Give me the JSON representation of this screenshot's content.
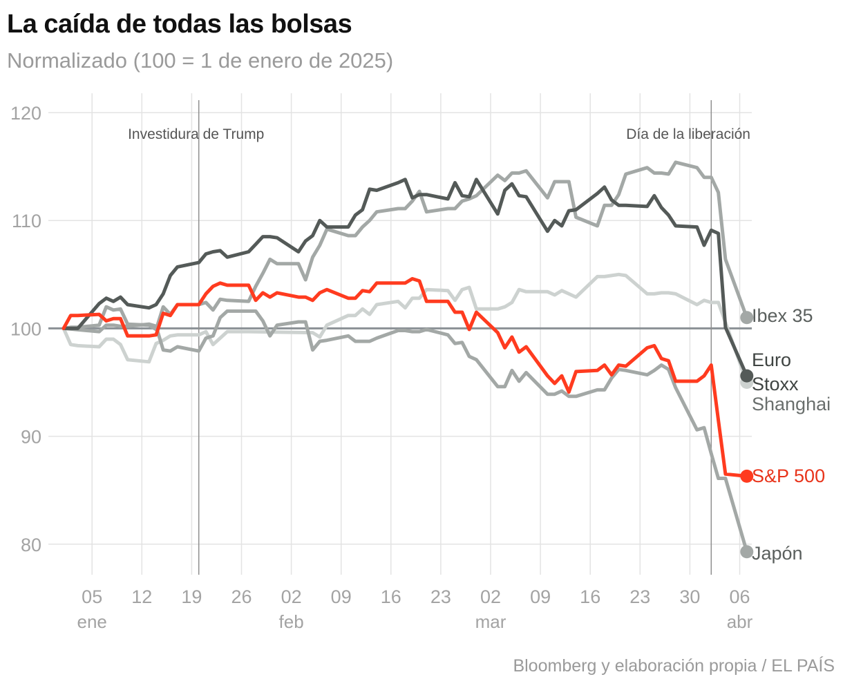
{
  "title": "La caída de todas las bolsas",
  "subtitle": "Normalizado (100 = 1 de enero de 2025)",
  "source": "Bloomberg y elaboración propia / EL PAÍS",
  "chart_data": {
    "type": "line",
    "x_start": "2025-01-01",
    "ylim": [
      76,
      121
    ],
    "yticks": [
      80,
      90,
      100,
      110,
      120
    ],
    "baseline": 100,
    "grid": true,
    "xticks": [
      {
        "date": "2025-01-05",
        "label": "05"
      },
      {
        "date": "2025-01-12",
        "label": "12"
      },
      {
        "date": "2025-01-19",
        "label": "19"
      },
      {
        "date": "2025-01-26",
        "label": "26"
      },
      {
        "date": "2025-02-02",
        "label": "02"
      },
      {
        "date": "2025-02-09",
        "label": "09"
      },
      {
        "date": "2025-02-16",
        "label": "16"
      },
      {
        "date": "2025-02-23",
        "label": "23"
      },
      {
        "date": "2025-03-02",
        "label": "02"
      },
      {
        "date": "2025-03-09",
        "label": "09"
      },
      {
        "date": "2025-03-16",
        "label": "16"
      },
      {
        "date": "2025-03-23",
        "label": "23"
      },
      {
        "date": "2025-03-30",
        "label": "30"
      },
      {
        "date": "2025-04-06",
        "label": "06"
      }
    ],
    "month_labels": [
      {
        "date": "2025-01-05",
        "label": "ene"
      },
      {
        "date": "2025-02-02",
        "label": "feb"
      },
      {
        "date": "2025-03-02",
        "label": "mar"
      },
      {
        "date": "2025-04-06",
        "label": "abr"
      }
    ],
    "events": [
      {
        "date": "2025-01-20",
        "label": "Investidura de Trump"
      },
      {
        "date": "2025-04-02",
        "label": "Día de la liberación"
      }
    ],
    "series": [
      {
        "name": "Shanghai",
        "color": "#cdd2d0",
        "x": [
          "2025-01-01",
          "2025-01-02",
          "2025-01-03",
          "2025-01-06",
          "2025-01-07",
          "2025-01-08",
          "2025-01-09",
          "2025-01-10",
          "2025-01-13",
          "2025-01-14",
          "2025-01-15",
          "2025-01-16",
          "2025-01-17",
          "2025-01-20",
          "2025-01-21",
          "2025-01-22",
          "2025-01-23",
          "2025-01-24",
          "2025-01-27",
          "2025-02-05",
          "2025-02-06",
          "2025-02-07",
          "2025-02-10",
          "2025-02-11",
          "2025-02-12",
          "2025-02-13",
          "2025-02-14",
          "2025-02-17",
          "2025-02-18",
          "2025-02-19",
          "2025-02-20",
          "2025-02-21",
          "2025-02-24",
          "2025-02-25",
          "2025-02-26",
          "2025-02-27",
          "2025-02-28",
          "2025-03-03",
          "2025-03-04",
          "2025-03-05",
          "2025-03-06",
          "2025-03-07",
          "2025-03-10",
          "2025-03-11",
          "2025-03-12",
          "2025-03-13",
          "2025-03-14",
          "2025-03-17",
          "2025-03-18",
          "2025-03-19",
          "2025-03-20",
          "2025-03-21",
          "2025-03-24",
          "2025-03-25",
          "2025-03-26",
          "2025-03-27",
          "2025-03-28",
          "2025-03-31",
          "2025-04-01",
          "2025-04-02",
          "2025-04-03",
          "2025-04-07"
        ],
        "values": [
          100,
          98.5,
          98.4,
          98.3,
          99.0,
          99.0,
          98.5,
          97.1,
          96.9,
          98.6,
          98.9,
          99.3,
          99.4,
          99.4,
          99.7,
          98.5,
          99.1,
          99.7,
          99.7,
          99.6,
          99.2,
          100.3,
          101.2,
          101.2,
          101.8,
          101.3,
          102.2,
          102.5,
          101.9,
          102.8,
          102.8,
          103.6,
          103.5,
          102.6,
          103.6,
          103.8,
          101.8,
          101.8,
          102.0,
          102.4,
          103.6,
          103.4,
          103.4,
          103.1,
          103.5,
          103.2,
          102.9,
          104.8,
          104.8,
          104.9,
          105.0,
          104.9,
          103.2,
          103.2,
          103.3,
          103.3,
          103.2,
          102.2,
          102.6,
          102.4,
          102.4,
          95.0
        ]
      },
      {
        "name": "Ibex 35",
        "color": "#a3a8a6",
        "x": [
          "2025-01-01",
          "2025-01-02",
          "2025-01-03",
          "2025-01-06",
          "2025-01-07",
          "2025-01-08",
          "2025-01-09",
          "2025-01-10",
          "2025-01-13",
          "2025-01-14",
          "2025-01-15",
          "2025-01-16",
          "2025-01-17",
          "2025-01-20",
          "2025-01-21",
          "2025-01-22",
          "2025-01-23",
          "2025-01-24",
          "2025-01-27",
          "2025-01-28",
          "2025-01-29",
          "2025-01-30",
          "2025-01-31",
          "2025-02-03",
          "2025-02-04",
          "2025-02-05",
          "2025-02-06",
          "2025-02-07",
          "2025-02-10",
          "2025-02-11",
          "2025-02-12",
          "2025-02-13",
          "2025-02-14",
          "2025-02-17",
          "2025-02-18",
          "2025-02-19",
          "2025-02-20",
          "2025-02-21",
          "2025-02-24",
          "2025-02-25",
          "2025-02-26",
          "2025-02-27",
          "2025-02-28",
          "2025-03-03",
          "2025-03-04",
          "2025-03-05",
          "2025-03-06",
          "2025-03-07",
          "2025-03-10",
          "2025-03-11",
          "2025-03-12",
          "2025-03-13",
          "2025-03-14",
          "2025-03-17",
          "2025-03-18",
          "2025-03-19",
          "2025-03-20",
          "2025-03-21",
          "2025-03-24",
          "2025-03-25",
          "2025-03-26",
          "2025-03-27",
          "2025-03-28",
          "2025-03-31",
          "2025-04-01",
          "2025-04-02",
          "2025-04-03",
          "2025-04-04",
          "2025-04-07"
        ],
        "values": [
          100,
          100.1,
          100.1,
          100.3,
          102.0,
          101.7,
          101.8,
          100.4,
          100.3,
          99.9,
          102.0,
          101.3,
          102.2,
          102.2,
          102.4,
          101.7,
          102.7,
          102.6,
          102.5,
          103.9,
          105.1,
          106.4,
          106.0,
          106.0,
          104.5,
          106.6,
          107.7,
          109.2,
          108.6,
          108.6,
          109.4,
          110.0,
          110.8,
          111.1,
          111.1,
          111.8,
          112.7,
          110.8,
          111.1,
          111.1,
          111.8,
          112.0,
          112.3,
          114.2,
          113.7,
          114.4,
          114.4,
          114.6,
          112.1,
          113.6,
          113.6,
          113.6,
          110.3,
          109.5,
          111.4,
          111.4,
          112.4,
          114.3,
          114.9,
          114.4,
          114.4,
          114.3,
          115.4,
          114.9,
          114.0,
          114.0,
          112.6,
          106.4,
          101.0
        ]
      },
      {
        "name": "Japón",
        "color": "#a3a8a6",
        "x": [
          "2025-01-01",
          "2025-01-06",
          "2025-01-07",
          "2025-01-08",
          "2025-01-09",
          "2025-01-10",
          "2025-01-13",
          "2025-01-14",
          "2025-01-15",
          "2025-01-16",
          "2025-01-17",
          "2025-01-20",
          "2025-01-21",
          "2025-01-22",
          "2025-01-23",
          "2025-01-24",
          "2025-01-27",
          "2025-01-28",
          "2025-01-29",
          "2025-01-30",
          "2025-01-31",
          "2025-02-03",
          "2025-02-04",
          "2025-02-05",
          "2025-02-06",
          "2025-02-07",
          "2025-02-10",
          "2025-02-11",
          "2025-02-12",
          "2025-02-13",
          "2025-02-14",
          "2025-02-17",
          "2025-02-18",
          "2025-02-19",
          "2025-02-20",
          "2025-02-21",
          "2025-02-24",
          "2025-02-25",
          "2025-02-26",
          "2025-02-27",
          "2025-02-28",
          "2025-03-03",
          "2025-03-04",
          "2025-03-05",
          "2025-03-06",
          "2025-03-07",
          "2025-03-10",
          "2025-03-11",
          "2025-03-12",
          "2025-03-13",
          "2025-03-14",
          "2025-03-17",
          "2025-03-18",
          "2025-03-19",
          "2025-03-20",
          "2025-03-21",
          "2025-03-24",
          "2025-03-25",
          "2025-03-26",
          "2025-03-27",
          "2025-03-28",
          "2025-03-31",
          "2025-04-01",
          "2025-04-02",
          "2025-04-03",
          "2025-04-04",
          "2025-04-07"
        ],
        "values": [
          100,
          99.7,
          100.3,
          100.3,
          100.2,
          100.2,
          100.4,
          100.2,
          98.0,
          97.9,
          98.3,
          97.9,
          99.1,
          99.3,
          101.0,
          101.6,
          101.6,
          101.6,
          100.7,
          99.3,
          100.3,
          100.6,
          100.6,
          98.0,
          98.8,
          98.9,
          99.3,
          98.8,
          98.8,
          98.8,
          99.1,
          99.8,
          99.8,
          99.7,
          99.7,
          99.9,
          99.4,
          98.6,
          98.7,
          97.4,
          97.1,
          94.6,
          94.6,
          96.1,
          95.1,
          95.9,
          93.9,
          93.9,
          94.2,
          93.7,
          93.7,
          94.3,
          94.3,
          95.4,
          96.2,
          96.1,
          95.7,
          96.1,
          96.6,
          96.2,
          94.5,
          90.6,
          90.8,
          88.4,
          86.1,
          86.1,
          79.3
        ]
      },
      {
        "name": "Euro Stoxx",
        "color": "#545a58",
        "x": [
          "2025-01-01",
          "2025-01-02",
          "2025-01-03",
          "2025-01-06",
          "2025-01-07",
          "2025-01-08",
          "2025-01-09",
          "2025-01-10",
          "2025-01-13",
          "2025-01-14",
          "2025-01-15",
          "2025-01-16",
          "2025-01-17",
          "2025-01-20",
          "2025-01-21",
          "2025-01-22",
          "2025-01-23",
          "2025-01-24",
          "2025-01-27",
          "2025-01-28",
          "2025-01-29",
          "2025-01-30",
          "2025-01-31",
          "2025-02-03",
          "2025-02-04",
          "2025-02-05",
          "2025-02-06",
          "2025-02-07",
          "2025-02-10",
          "2025-02-11",
          "2025-02-12",
          "2025-02-13",
          "2025-02-14",
          "2025-02-17",
          "2025-02-18",
          "2025-02-19",
          "2025-02-20",
          "2025-02-21",
          "2025-02-24",
          "2025-02-25",
          "2025-02-26",
          "2025-02-27",
          "2025-02-28",
          "2025-03-03",
          "2025-03-04",
          "2025-03-05",
          "2025-03-06",
          "2025-03-07",
          "2025-03-10",
          "2025-03-11",
          "2025-03-12",
          "2025-03-13",
          "2025-03-14",
          "2025-03-17",
          "2025-03-18",
          "2025-03-19",
          "2025-03-20",
          "2025-03-21",
          "2025-03-24",
          "2025-03-25",
          "2025-03-26",
          "2025-03-27",
          "2025-03-28",
          "2025-03-31",
          "2025-04-01",
          "2025-04-02",
          "2025-04-03",
          "2025-04-04",
          "2025-04-07"
        ],
        "values": [
          100,
          100.0,
          100.0,
          102.3,
          102.8,
          102.5,
          102.9,
          102.2,
          101.9,
          102.2,
          103.2,
          104.9,
          105.7,
          106.1,
          106.9,
          107.1,
          107.2,
          106.6,
          107.1,
          107.8,
          108.5,
          108.5,
          108.4,
          107.1,
          108.1,
          108.6,
          110.0,
          109.4,
          109.4,
          110.5,
          111.0,
          112.9,
          112.8,
          113.5,
          113.8,
          112.1,
          112.4,
          112.4,
          112.0,
          113.5,
          112.3,
          112.2,
          113.8,
          110.6,
          112.8,
          113.4,
          112.3,
          112.2,
          109.0,
          110.0,
          109.5,
          110.9,
          111.0,
          112.5,
          113.1,
          111.9,
          111.4,
          111.4,
          111.3,
          112.3,
          111.2,
          110.5,
          109.5,
          109.4,
          107.7,
          109.1,
          108.8,
          100.1,
          95.6
        ]
      },
      {
        "name": "S&P 500",
        "color": "#ff3b1f",
        "x": [
          "2025-01-01",
          "2025-01-02",
          "2025-01-03",
          "2025-01-06",
          "2025-01-07",
          "2025-01-08",
          "2025-01-09",
          "2025-01-10",
          "2025-01-13",
          "2025-01-14",
          "2025-01-15",
          "2025-01-16",
          "2025-01-17",
          "2025-01-20",
          "2025-01-21",
          "2025-01-22",
          "2025-01-23",
          "2025-01-24",
          "2025-01-27",
          "2025-01-28",
          "2025-01-29",
          "2025-01-30",
          "2025-01-31",
          "2025-02-03",
          "2025-02-04",
          "2025-02-05",
          "2025-02-06",
          "2025-02-07",
          "2025-02-10",
          "2025-02-11",
          "2025-02-12",
          "2025-02-13",
          "2025-02-14",
          "2025-02-17",
          "2025-02-18",
          "2025-02-19",
          "2025-02-20",
          "2025-02-21",
          "2025-02-24",
          "2025-02-25",
          "2025-02-26",
          "2025-02-27",
          "2025-02-28",
          "2025-03-03",
          "2025-03-04",
          "2025-03-05",
          "2025-03-06",
          "2025-03-07",
          "2025-03-10",
          "2025-03-11",
          "2025-03-12",
          "2025-03-13",
          "2025-03-14",
          "2025-03-17",
          "2025-03-18",
          "2025-03-19",
          "2025-03-20",
          "2025-03-21",
          "2025-03-24",
          "2025-03-25",
          "2025-03-26",
          "2025-03-27",
          "2025-03-28",
          "2025-03-31",
          "2025-04-01",
          "2025-04-02",
          "2025-04-03",
          "2025-04-04",
          "2025-04-07"
        ],
        "values": [
          100,
          101.2,
          101.2,
          101.3,
          100.7,
          100.9,
          100.9,
          99.3,
          99.3,
          99.4,
          101.4,
          101.2,
          102.2,
          102.2,
          103.2,
          103.9,
          104.2,
          104.0,
          104.0,
          102.6,
          103.3,
          102.9,
          103.3,
          102.9,
          102.9,
          102.6,
          103.3,
          103.6,
          102.8,
          102.8,
          103.5,
          103.4,
          104.2,
          104.2,
          104.2,
          104.6,
          104.4,
          102.5,
          102.5,
          101.5,
          101.5,
          99.9,
          101.5,
          99.6,
          98.2,
          99.2,
          97.8,
          98.3,
          95.6,
          94.9,
          95.6,
          94.1,
          96.0,
          96.1,
          96.6,
          95.7,
          96.6,
          96.5,
          98.2,
          98.4,
          97.2,
          97.0,
          95.1,
          95.1,
          95.6,
          96.6,
          91.5,
          86.5,
          86.3
        ]
      }
    ],
    "end_labels": [
      {
        "series": "Ibex 35",
        "lines": [
          "Ibex 35"
        ],
        "color": "#5a5f5d"
      },
      {
        "series": "Euro Stoxx",
        "lines": [
          "Euro",
          "Stoxx"
        ],
        "color": "#3f4442"
      },
      {
        "series": "Shanghai",
        "lines": [
          "Shanghai"
        ],
        "color": "#6a6f6d"
      },
      {
        "series": "S&P 500",
        "lines": [
          "S&P 500"
        ],
        "color": "#e8331a"
      },
      {
        "series": "Japón",
        "lines": [
          "Japón"
        ],
        "color": "#5a5f5d"
      }
    ]
  }
}
